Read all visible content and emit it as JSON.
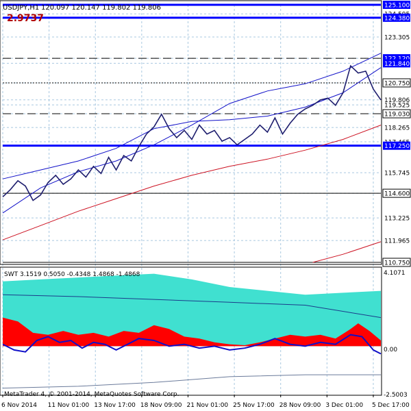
{
  "header": {
    "symbol_label": "USDJPY,H1",
    "ohlc_text": "120.097 120.147 119.802 119.806",
    "big_value": "2.9737"
  },
  "indicator": {
    "label": "SWT 3.1519 0.5050 -0.4348 1.4868 -1.4868",
    "axis_labels": [
      "4.1071",
      "0.00",
      "-2.5003"
    ]
  },
  "copyright": "MetaTrader 4, © 2001-2014, MetaQuotes Software Corp.",
  "colors": {
    "price": "#1e1e6e",
    "ma_blue": "#1010c8",
    "ma_red": "#cc1020",
    "fill_teal": "#40e0d0",
    "fill_red": "#ff0000",
    "hline_blue": "#0000ff",
    "grid": "#a8c8e0",
    "axis_label_bg": "#0000ff"
  },
  "chart_data": {
    "type": "line",
    "symbol": "USDJPY",
    "timeframe": "H1",
    "ylim": [
      110.75,
      125.1
    ],
    "y_ticks": [
      "125.100",
      "124.595",
      "124.380",
      "123.305",
      "122.120",
      "121.840",
      "120.750",
      "119.806",
      "119.525",
      "119.030",
      "118.265",
      "117.465",
      "117.250",
      "115.745",
      "114.600",
      "113.225",
      "111.965",
      "110.750"
    ],
    "x_ticks": [
      "6 Nov 2014",
      "11 Nov 01:00",
      "13 Nov 17:00",
      "18 Nov 09:00",
      "21 Nov 01:00",
      "25 Nov 17:00",
      "28 Nov 09:00",
      "3 Dec 01:00",
      "5 Dec 17:00"
    ],
    "price_series": [
      {
        "x": 0,
        "y": 114.4
      },
      {
        "x": 0.02,
        "y": 114.8
      },
      {
        "x": 0.04,
        "y": 115.3
      },
      {
        "x": 0.06,
        "y": 115.0
      },
      {
        "x": 0.08,
        "y": 114.2
      },
      {
        "x": 0.1,
        "y": 114.5
      },
      {
        "x": 0.12,
        "y": 115.2
      },
      {
        "x": 0.14,
        "y": 115.6
      },
      {
        "x": 0.16,
        "y": 115.1
      },
      {
        "x": 0.18,
        "y": 115.4
      },
      {
        "x": 0.2,
        "y": 115.9
      },
      {
        "x": 0.22,
        "y": 115.5
      },
      {
        "x": 0.24,
        "y": 116.1
      },
      {
        "x": 0.26,
        "y": 115.7
      },
      {
        "x": 0.28,
        "y": 116.6
      },
      {
        "x": 0.3,
        "y": 115.9
      },
      {
        "x": 0.32,
        "y": 116.7
      },
      {
        "x": 0.34,
        "y": 116.4
      },
      {
        "x": 0.36,
        "y": 117.2
      },
      {
        "x": 0.38,
        "y": 117.9
      },
      {
        "x": 0.4,
        "y": 118.3
      },
      {
        "x": 0.42,
        "y": 119.0
      },
      {
        "x": 0.44,
        "y": 118.2
      },
      {
        "x": 0.46,
        "y": 117.7
      },
      {
        "x": 0.48,
        "y": 118.1
      },
      {
        "x": 0.5,
        "y": 117.6
      },
      {
        "x": 0.52,
        "y": 118.4
      },
      {
        "x": 0.54,
        "y": 117.9
      },
      {
        "x": 0.56,
        "y": 118.1
      },
      {
        "x": 0.58,
        "y": 117.5
      },
      {
        "x": 0.6,
        "y": 117.7
      },
      {
        "x": 0.62,
        "y": 117.3
      },
      {
        "x": 0.64,
        "y": 117.6
      },
      {
        "x": 0.66,
        "y": 117.9
      },
      {
        "x": 0.68,
        "y": 118.4
      },
      {
        "x": 0.7,
        "y": 118.0
      },
      {
        "x": 0.72,
        "y": 118.8
      },
      {
        "x": 0.74,
        "y": 117.9
      },
      {
        "x": 0.76,
        "y": 118.5
      },
      {
        "x": 0.78,
        "y": 119.0
      },
      {
        "x": 0.8,
        "y": 119.3
      },
      {
        "x": 0.82,
        "y": 119.5
      },
      {
        "x": 0.84,
        "y": 119.8
      },
      {
        "x": 0.86,
        "y": 119.9
      },
      {
        "x": 0.88,
        "y": 119.5
      },
      {
        "x": 0.9,
        "y": 120.2
      },
      {
        "x": 0.92,
        "y": 121.7
      },
      {
        "x": 0.94,
        "y": 121.3
      },
      {
        "x": 0.96,
        "y": 121.4
      },
      {
        "x": 0.98,
        "y": 120.4
      },
      {
        "x": 1.0,
        "y": 119.8
      }
    ],
    "ma_upper": [
      {
        "x": 0,
        "y": 113.5
      },
      {
        "x": 0.1,
        "y": 114.9
      },
      {
        "x": 0.2,
        "y": 115.8
      },
      {
        "x": 0.3,
        "y": 116.4
      },
      {
        "x": 0.4,
        "y": 117.3
      },
      {
        "x": 0.5,
        "y": 118.4
      },
      {
        "x": 0.6,
        "y": 119.6
      },
      {
        "x": 0.7,
        "y": 120.3
      },
      {
        "x": 0.8,
        "y": 120.7
      },
      {
        "x": 0.9,
        "y": 121.4
      },
      {
        "x": 1.0,
        "y": 122.4
      }
    ],
    "ma_middle": [
      {
        "x": 0,
        "y": 115.4
      },
      {
        "x": 0.1,
        "y": 115.9
      },
      {
        "x": 0.2,
        "y": 116.4
      },
      {
        "x": 0.3,
        "y": 117.1
      },
      {
        "x": 0.4,
        "y": 118.2
      },
      {
        "x": 0.5,
        "y": 118.6
      },
      {
        "x": 0.6,
        "y": 118.7
      },
      {
        "x": 0.7,
        "y": 118.9
      },
      {
        "x": 0.8,
        "y": 119.4
      },
      {
        "x": 0.9,
        "y": 120.2
      },
      {
        "x": 1.0,
        "y": 121.6
      }
    ],
    "ma_red": [
      {
        "x": 0,
        "y": 112.0
      },
      {
        "x": 0.1,
        "y": 112.8
      },
      {
        "x": 0.2,
        "y": 113.6
      },
      {
        "x": 0.3,
        "y": 114.3
      },
      {
        "x": 0.4,
        "y": 115.0
      },
      {
        "x": 0.5,
        "y": 115.6
      },
      {
        "x": 0.6,
        "y": 116.1
      },
      {
        "x": 0.7,
        "y": 116.5
      },
      {
        "x": 0.8,
        "y": 117.0
      },
      {
        "x": 0.9,
        "y": 117.6
      },
      {
        "x": 1.0,
        "y": 118.4
      }
    ],
    "ma_red_lower": [
      {
        "x": 0.82,
        "y": 110.75
      },
      {
        "x": 0.9,
        "y": 111.2
      },
      {
        "x": 1.0,
        "y": 111.9
      }
    ],
    "hlines": [
      {
        "value": 125.1,
        "style": "solid-thick"
      },
      {
        "value": 124.38,
        "style": "solid-thick"
      },
      {
        "value": 122.12,
        "style": "dashed"
      },
      {
        "value": 120.75,
        "style": "dotted"
      },
      {
        "value": 119.03,
        "style": "dashed"
      },
      {
        "value": 117.25,
        "style": "solid-thick"
      },
      {
        "value": 114.6,
        "style": "solid-thin"
      },
      {
        "value": 110.75,
        "style": "solid-thin"
      }
    ],
    "indicator_ylim": [
      -2.5003,
      4.1071
    ],
    "indicator_teal": [
      {
        "x": 0,
        "y": 3.4
      },
      {
        "x": 0.1,
        "y": 3.5
      },
      {
        "x": 0.2,
        "y": 3.6
      },
      {
        "x": 0.3,
        "y": 3.7
      },
      {
        "x": 0.4,
        "y": 3.8
      },
      {
        "x": 0.5,
        "y": 3.5
      },
      {
        "x": 0.6,
        "y": 3.1
      },
      {
        "x": 0.7,
        "y": 2.9
      },
      {
        "x": 0.8,
        "y": 2.7
      },
      {
        "x": 0.9,
        "y": 2.8
      },
      {
        "x": 1.0,
        "y": 2.9
      }
    ],
    "indicator_red": [
      {
        "x": 0,
        "y": 1.5
      },
      {
        "x": 0.04,
        "y": 1.3
      },
      {
        "x": 0.08,
        "y": 0.7
      },
      {
        "x": 0.12,
        "y": 0.6
      },
      {
        "x": 0.16,
        "y": 0.8
      },
      {
        "x": 0.2,
        "y": 0.6
      },
      {
        "x": 0.24,
        "y": 0.7
      },
      {
        "x": 0.28,
        "y": 0.5
      },
      {
        "x": 0.32,
        "y": 0.8
      },
      {
        "x": 0.36,
        "y": 0.7
      },
      {
        "x": 0.4,
        "y": 1.1
      },
      {
        "x": 0.44,
        "y": 0.9
      },
      {
        "x": 0.48,
        "y": 0.5
      },
      {
        "x": 0.52,
        "y": 0.4
      },
      {
        "x": 0.56,
        "y": 0.2
      },
      {
        "x": 0.6,
        "y": 0.1
      },
      {
        "x": 0.64,
        "y": 0.05
      },
      {
        "x": 0.68,
        "y": 0.2
      },
      {
        "x": 0.72,
        "y": 0.4
      },
      {
        "x": 0.76,
        "y": 0.6
      },
      {
        "x": 0.8,
        "y": 0.5
      },
      {
        "x": 0.84,
        "y": 0.6
      },
      {
        "x": 0.88,
        "y": 0.4
      },
      {
        "x": 0.92,
        "y": 0.9
      },
      {
        "x": 0.94,
        "y": 1.2
      },
      {
        "x": 0.97,
        "y": 0.8
      },
      {
        "x": 1.0,
        "y": 0.3
      }
    ],
    "indicator_blue": [
      {
        "x": 0,
        "y": 0.1
      },
      {
        "x": 0.03,
        "y": -0.2
      },
      {
        "x": 0.06,
        "y": -0.3
      },
      {
        "x": 0.09,
        "y": 0.3
      },
      {
        "x": 0.12,
        "y": 0.5
      },
      {
        "x": 0.15,
        "y": 0.2
      },
      {
        "x": 0.18,
        "y": 0.3
      },
      {
        "x": 0.21,
        "y": -0.1
      },
      {
        "x": 0.24,
        "y": 0.2
      },
      {
        "x": 0.27,
        "y": 0.1
      },
      {
        "x": 0.3,
        "y": -0.2
      },
      {
        "x": 0.33,
        "y": 0.1
      },
      {
        "x": 0.36,
        "y": 0.4
      },
      {
        "x": 0.4,
        "y": 0.3
      },
      {
        "x": 0.44,
        "y": 0.0
      },
      {
        "x": 0.48,
        "y": 0.1
      },
      {
        "x": 0.52,
        "y": -0.1
      },
      {
        "x": 0.56,
        "y": 0.0
      },
      {
        "x": 0.6,
        "y": -0.2
      },
      {
        "x": 0.64,
        "y": -0.1
      },
      {
        "x": 0.68,
        "y": 0.1
      },
      {
        "x": 0.72,
        "y": 0.4
      },
      {
        "x": 0.76,
        "y": 0.1
      },
      {
        "x": 0.8,
        "y": 0.0
      },
      {
        "x": 0.84,
        "y": 0.2
      },
      {
        "x": 0.88,
        "y": 0.1
      },
      {
        "x": 0.92,
        "y": 0.6
      },
      {
        "x": 0.95,
        "y": 0.5
      },
      {
        "x": 0.98,
        "y": -0.2
      },
      {
        "x": 1.0,
        "y": -0.4
      }
    ],
    "indicator_upper_line": [
      {
        "x": 0,
        "y": 2.7
      },
      {
        "x": 0.2,
        "y": 2.6
      },
      {
        "x": 0.4,
        "y": 2.45
      },
      {
        "x": 0.6,
        "y": 2.3
      },
      {
        "x": 0.8,
        "y": 2.15
      },
      {
        "x": 1.0,
        "y": 1.5
      }
    ],
    "indicator_lower_line": [
      {
        "x": 0,
        "y": -2.2
      },
      {
        "x": 0.2,
        "y": -2.1
      },
      {
        "x": 0.4,
        "y": -1.9
      },
      {
        "x": 0.6,
        "y": -1.6
      },
      {
        "x": 0.8,
        "y": -1.5
      },
      {
        "x": 1.0,
        "y": -1.5
      }
    ]
  }
}
